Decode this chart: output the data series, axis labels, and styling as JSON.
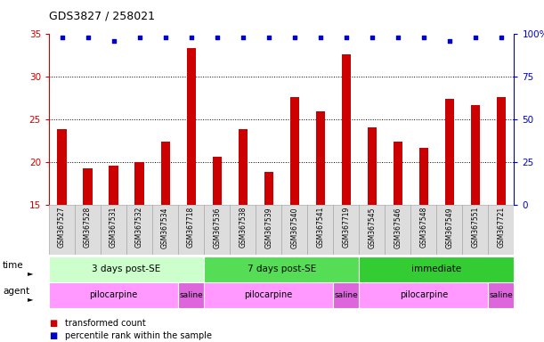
{
  "title": "GDS3827 / 258021",
  "samples": [
    "GSM367527",
    "GSM367528",
    "GSM367531",
    "GSM367532",
    "GSM367534",
    "GSM367718",
    "GSM367536",
    "GSM367538",
    "GSM367539",
    "GSM367540",
    "GSM367541",
    "GSM367719",
    "GSM367545",
    "GSM367546",
    "GSM367548",
    "GSM367549",
    "GSM367551",
    "GSM367721"
  ],
  "bar_values": [
    23.9,
    19.3,
    19.6,
    20.0,
    22.4,
    33.4,
    20.7,
    23.9,
    18.9,
    27.6,
    26.0,
    32.6,
    24.1,
    22.4,
    21.7,
    27.4,
    26.7,
    27.6
  ],
  "percentile_values": [
    98,
    98,
    96,
    98,
    98,
    98,
    98,
    98,
    98,
    98,
    98,
    98,
    98,
    98,
    98,
    96,
    98,
    98
  ],
  "bar_color": "#cc0000",
  "percentile_color": "#0000cc",
  "ylim_left": [
    15,
    35
  ],
  "ylim_right": [
    0,
    100
  ],
  "yticks_left": [
    15,
    20,
    25,
    30,
    35
  ],
  "yticks_right": [
    0,
    25,
    50,
    75,
    100
  ],
  "time_groups": [
    {
      "label": "3 days post-SE",
      "start": 0,
      "end": 6,
      "color": "#ccffcc"
    },
    {
      "label": "7 days post-SE",
      "start": 6,
      "end": 12,
      "color": "#55dd55"
    },
    {
      "label": "immediate",
      "start": 12,
      "end": 18,
      "color": "#33cc33"
    }
  ],
  "agent_groups": [
    {
      "label": "pilocarpine",
      "start": 0,
      "end": 5,
      "color": "#ff99ff"
    },
    {
      "label": "saline",
      "start": 5,
      "end": 6,
      "color": "#dd66dd"
    },
    {
      "label": "pilocarpine",
      "start": 6,
      "end": 11,
      "color": "#ff99ff"
    },
    {
      "label": "saline",
      "start": 11,
      "end": 12,
      "color": "#dd66dd"
    },
    {
      "label": "pilocarpine",
      "start": 12,
      "end": 17,
      "color": "#ff99ff"
    },
    {
      "label": "saline",
      "start": 17,
      "end": 18,
      "color": "#dd66dd"
    }
  ],
  "legend_items": [
    {
      "label": "transformed count",
      "color": "#cc0000"
    },
    {
      "label": "percentile rank within the sample",
      "color": "#0000cc"
    }
  ],
  "background_color": "#ffffff",
  "xlabel_time": "time",
  "xlabel_agent": "agent",
  "cell_bg": "#dddddd",
  "cell_border": "#aaaaaa"
}
